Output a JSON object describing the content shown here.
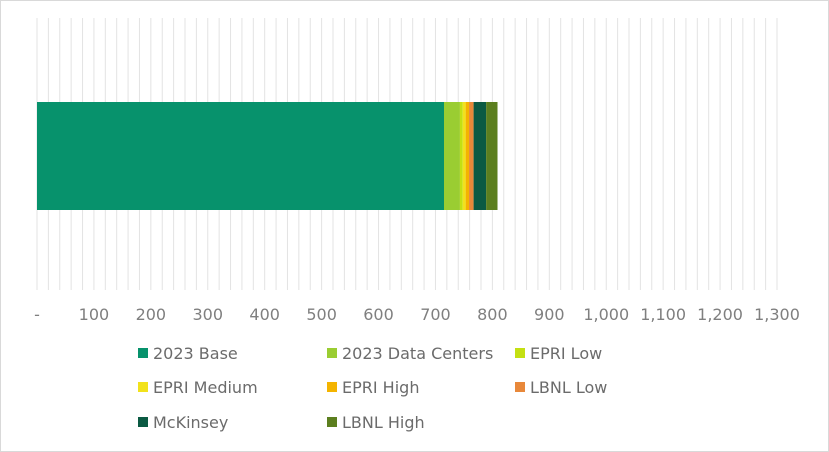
{
  "chart_data": {
    "type": "bar",
    "orientation": "horizontal",
    "stacked": true,
    "categories": [
      ""
    ],
    "series": [
      {
        "name": "2023 Base",
        "values": [
          715
        ],
        "color": "#07926C"
      },
      {
        "name": "2023 Data Centers",
        "values": [
          28
        ],
        "color": "#9ACD32"
      },
      {
        "name": "EPRI Low",
        "values": [
          5
        ],
        "color": "#C4E012"
      },
      {
        "name": "EPRI Medium",
        "values": [
          5
        ],
        "color": "#F2E21C"
      },
      {
        "name": "EPRI High",
        "values": [
          6
        ],
        "color": "#F4B400"
      },
      {
        "name": "LBNL Low",
        "values": [
          8
        ],
        "color": "#E8883A"
      },
      {
        "name": "McKinsey",
        "values": [
          22
        ],
        "color": "#0B5A43"
      },
      {
        "name": "LBNL High",
        "values": [
          20
        ],
        "color": "#5C7F1F"
      }
    ],
    "xlim": [
      0,
      1300
    ],
    "major_step": 100,
    "minor_step": 20,
    "x_tick_labels": [
      "-",
      "100",
      "200",
      "300",
      "400",
      "500",
      "600",
      "700",
      "800",
      "900",
      "1,000",
      "1,100",
      "1,200",
      "1,300"
    ],
    "grid": true,
    "legend_position": "bottom",
    "title": "",
    "xlabel": "",
    "ylabel": ""
  }
}
